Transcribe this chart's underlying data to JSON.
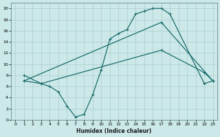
{
  "xlabel": "Humidex (Indice chaleur)",
  "bg_color": "#cce8e8",
  "grid_color": "#aacccc",
  "line_color": "#1a6b6b",
  "xlim": [
    -0.5,
    23.5
  ],
  "ylim": [
    0,
    21
  ],
  "xticks": [
    0,
    1,
    2,
    3,
    4,
    5,
    6,
    7,
    8,
    9,
    10,
    11,
    12,
    13,
    14,
    15,
    16,
    17,
    18,
    19,
    20,
    21,
    22,
    23
  ],
  "yticks": [
    0,
    2,
    4,
    6,
    8,
    10,
    12,
    14,
    16,
    18,
    20
  ],
  "line1_x": [
    1,
    3,
    4,
    5,
    6,
    7,
    8,
    9,
    10,
    11,
    12,
    13,
    14,
    15,
    16,
    17,
    18,
    22,
    23
  ],
  "line1_y": [
    8,
    6.5,
    6,
    5,
    2.5,
    0.5,
    1,
    4.5,
    9,
    14.5,
    15.5,
    16.2,
    19,
    19.5,
    20,
    20,
    19,
    6.5,
    7
  ],
  "line2_x": [
    1,
    3,
    17,
    22,
    23
  ],
  "line2_y": [
    7,
    6.5,
    12.5,
    8.5,
    7
  ],
  "line3_x": [
    1,
    17,
    23
  ],
  "line3_y": [
    7,
    17.5,
    7
  ]
}
